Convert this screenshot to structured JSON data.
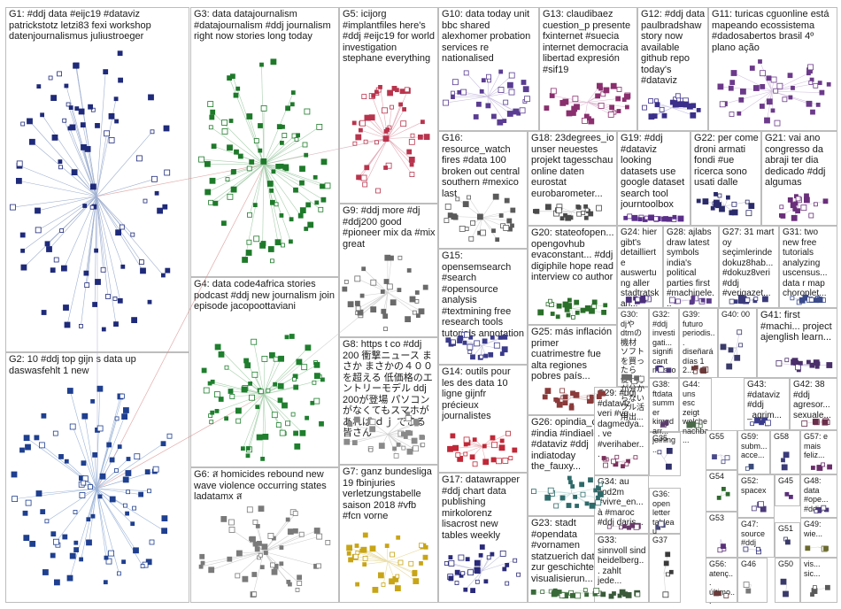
{
  "groups": [
    {
      "id": "G1",
      "label": "G1: #ddj data #eijc19 #dataviz patrickstotz letzi83 fexi workshop datenjournalismus juliustroeger",
      "color": "#1f2a7a",
      "edge": "#9fb0d0"
    },
    {
      "id": "G2",
      "label": "G2: 10 #ddj top gijn s data up daswasfehlt 1 new",
      "color": "#1f3f8f",
      "edge": "#9db5d8"
    },
    {
      "id": "G3",
      "label": "G3: data datajournalism #datajournalism #ddj journalism right now stories long today",
      "color": "#1e7a2a",
      "edge": "#a8ceae"
    },
    {
      "id": "G4",
      "label": "G4: data code4africa stories podcast #ddj new journalism join episode jacopoottaviani",
      "color": "#1f7f2e",
      "edge": "#a8d1ae"
    },
    {
      "id": "G5",
      "label": "G5: icijorg #implantfiles here's #ddj #eijc19 for world investigation stephane everything",
      "color": "#b8344d",
      "edge": "#e3a9b6"
    },
    {
      "id": "G6",
      "label": "G6: ส homicides rebound new wave violence occurring states ladatamx ส",
      "color": "#7a7a7a",
      "edge": "#cfcfcf"
    },
    {
      "id": "G7",
      "label": "G7: ganz bundesliga 19 fbinjuries verletzungstabelle saison 2018 #vfb #fcn vorne",
      "color": "#c8a516",
      "edge": "#e8dba0"
    },
    {
      "id": "G8",
      "label": "G8: https t co #ddj 200 衝撃ニュース まさか まさかの４００を超える 低価格のエントリーモデル ddj 200が登場 パソコンがなくてもスマホがあれば ｄｊ できる 皆さん",
      "color": "#8a8a8a",
      "edge": "#d0d0d0"
    },
    {
      "id": "G9",
      "label": "G9: #ddj more #dj #ddj200 good #pioneer mix da #mix great",
      "color": "#6a6a6a",
      "edge": "#d3d3d3"
    },
    {
      "id": "G10",
      "label": "G10: data today unit bbc shared alexhomer probation services re nationalised",
      "color": "#5a3d92",
      "edge": "#cbbfe0"
    },
    {
      "id": "G11",
      "label": "G11: turicas cguonline está mapeando ecossistema #dadosabertos brasil 4º plano ação",
      "color": "#6c3a8a",
      "edge": "#d4c2e0"
    },
    {
      "id": "G12",
      "label": "G12: #ddj data paulbradshaw story now available github repo today's #dataviz",
      "color": "#3a2f8a",
      "edge": "#c7c2e6"
    },
    {
      "id": "G13",
      "label": "G13: claudibaez cuestion_p presente fxinternet #suecia internet democracia libertad expresión #sif19",
      "color": "#8a2f6e",
      "edge": "#e0bfd6"
    },
    {
      "id": "G14",
      "label": "G14: outils pour les des data 10 ligne gijnfr précieux journalistes",
      "color": "#c02838",
      "edge": "#eab0b6"
    },
    {
      "id": "G15",
      "label": "G15: opensemsearch #search #opensource analysis #textmining free research tools tutorials annotation",
      "color": "#3a3a8a",
      "edge": "#c6c6e0"
    },
    {
      "id": "G16",
      "label": "G16: resource_watch fires #data 100 broken out central southern #mexico last",
      "color": "#5a5a5a",
      "edge": "#d6d6d6"
    },
    {
      "id": "G17",
      "label": "G17: datawrapper #ddj chart data publishing mirkolorenz lisacrost new tables weekly",
      "color": "#2a2a7a",
      "edge": "#c4c4e0"
    },
    {
      "id": "G18",
      "label": "G18: 23degrees_io unser neuestes projekt tagesschau online daten eurostat eurobarometer...",
      "color": "#4a4a4a",
      "edge": "#d8d8d8"
    },
    {
      "id": "G19",
      "label": "G19: #ddj #dataviz looking datasets use google dataset search tool journtoolbox",
      "color": "#5a2f8a",
      "edge": "#d2c4e2"
    },
    {
      "id": "G20",
      "label": "G20: stateofopen... opengovhub evaconstant... #ddj digiphile hope read interview co author",
      "color": "#2a6f2a",
      "edge": "#c2dcc2"
    },
    {
      "id": "G21",
      "label": "G21: vai ano congresso da abraji ter dia dedicado #ddj algumas",
      "color": "#6a2f7a",
      "edge": "#d8c6e0"
    },
    {
      "id": "G22",
      "label": "G22: per come droni armati fondi #ue ricerca sono usati dalle",
      "color": "#2a2a6a",
      "edge": "#c6c6dc"
    },
    {
      "id": "G23",
      "label": "G23: stadt #opendata #vornamen statzuerich daten zur geschichte visualisierun...",
      "color": "#3a6a3a",
      "edge": "#c8dcc8"
    },
    {
      "id": "G24",
      "label": "G24: hier gibt's detaillierte auswertung aller stadtratskan...",
      "color": "#4a2f7a",
      "edge": "#cfc6e0"
    },
    {
      "id": "G25",
      "label": "G25: más inflación primer cuatrimestre fue alta regiones pobres país...",
      "color": "#8a3a3a",
      "edge": "#e0c6c6"
    },
    {
      "id": "G26",
      "label": "G26: opindia_com #india #indiaelects #dataviz #ddj indiatoday the_fauxy...",
      "color": "#2f6a6a",
      "edge": "#c4dcdc"
    },
    {
      "id": "G27",
      "label": "G27: 31 mart oy seçimlerinde dokuz8hab... #dokuz8veri #ddj #verigazet...",
      "color": "#3a3a7a",
      "edge": "#c8c8e0"
    },
    {
      "id": "G28",
      "label": "G28: ajlabs draw latest symbols india's political parties first #machinele...",
      "color": "#5a3a8a",
      "edge": "#d0c6e0"
    },
    {
      "id": "G29",
      "label": "G29: #ddj #dataviz veri #vg dagmedya... ve #verihaber...",
      "color": "#7a2f5a",
      "edge": "#dcc4d4"
    },
    {
      "id": "G30",
      "label": "G30: djや dtmの機材 ソフトを買ったら 使い方が分からない フル活用出...",
      "color": "#6a6a6a",
      "edge": "#d6d6d6"
    },
    {
      "id": "G31",
      "label": "G31: two new free tutorials analyzing uscensus... data r map choroplet...",
      "color": "#3a4a8a",
      "edge": "#c6cce0"
    },
    {
      "id": "G32",
      "label": "G32: #ddj investigati... significant moscow...",
      "color": "#4a3a7a",
      "edge": "#ccc6e0"
    },
    {
      "id": "G33",
      "label": "G33: sinnvoll sind heidelberg... zahlt jede...",
      "color": "#3a5a3a",
      "edge": "#c8d8c8"
    },
    {
      "id": "G34",
      "label": "G34: au cpd2m #vivre_en... à #maroc #ddj daris...",
      "color": "#6a3a6a",
      "edge": "#d8c6d8"
    },
    {
      "id": "G35",
      "label": "G35",
      "color": "#2f2f6a",
      "edge": "#c8c8dc"
    },
    {
      "id": "G36",
      "label": "G36: open letter tableau software...",
      "color": "#4a4a7a",
      "edge": "#ccccdc"
    },
    {
      "id": "G37",
      "label": "G37",
      "color": "#3a3a3a",
      "edge": "#d4d4d4"
    },
    {
      "id": "G38",
      "label": "G38: ftdata summer kimgdarr... joining...",
      "color": "#5a3a6a",
      "edge": "#d4c8dc"
    },
    {
      "id": "G39",
      "label": "G39: futuro periodis... diseñará días 1 2...",
      "color": "#6a3a3a",
      "edge": "#dcc8c8"
    },
    {
      "id": "G40",
      "label": "G40: 00",
      "color": "#3a3a6a",
      "edge": "#c8c8dc"
    },
    {
      "id": "G41",
      "label": "G41: first #machi... project ajenglish learn...",
      "color": "#4a2f6a",
      "edge": "#d0c6dc"
    },
    {
      "id": "G42",
      "label": "G42: 38 #ddj agresor... sexuale...",
      "color": "#6a2f4a",
      "edge": "#dcc4d0"
    },
    {
      "id": "G43",
      "label": "G43: #dataviz #ddj _agrim...",
      "color": "#3a3a8a",
      "edge": "#c8c8e0"
    },
    {
      "id": "G44",
      "label": "G44: uns esc zeigt welche nachba...",
      "color": "#4a6a4a",
      "edge": "#ccdccc"
    },
    {
      "id": "G45",
      "label": "G45",
      "color": "#5a2f7a",
      "edge": "#d2c6e0"
    },
    {
      "id": "G46",
      "label": "G46",
      "color": "#7a7a7a",
      "edge": "#d8d8d8"
    },
    {
      "id": "G47",
      "label": "G47: source #ddj",
      "color": "#2f2f7a",
      "edge": "#c6c6e0"
    },
    {
      "id": "G48",
      "label": "G48: data #ope... #ddj...",
      "color": "#4a3a7a",
      "edge": "#ccc6e0"
    },
    {
      "id": "G49",
      "label": "G49: wie...",
      "color": "#6a6a2f",
      "edge": "#dcdcc4"
    },
    {
      "id": "G50",
      "label": "G50",
      "color": "#3a3a6a",
      "edge": "#c8c8dc"
    },
    {
      "id": "G51",
      "label": "G51",
      "color": "#3a3a6a",
      "edge": "#c8c8dc"
    },
    {
      "id": "G52",
      "label": "G52: spacex",
      "color": "#4a3a7a",
      "edge": "#ccc6e0"
    },
    {
      "id": "G53",
      "label": "G53",
      "color": "#5a2f7a",
      "edge": "#d2c6e0"
    },
    {
      "id": "G54",
      "label": "G54",
      "color": "#2f6a2f",
      "edge": "#c4dcc4"
    },
    {
      "id": "G55",
      "label": "G55",
      "color": "#4a4a8a",
      "edge": "#ccccdc"
    },
    {
      "id": "G56",
      "label": "G56: atenç... último...",
      "color": "#6a3a3a",
      "edge": "#dcc8c8"
    },
    {
      "id": "G57",
      "label": "G57: e mais feliz...",
      "color": "#6a2f6a",
      "edge": "#dcc4dc"
    },
    {
      "id": "G58",
      "label": "G58",
      "color": "#3a3a7a",
      "edge": "#c8c8e0"
    },
    {
      "id": "G59",
      "label": "G59: subm... acce...",
      "color": "#3a4a7a",
      "edge": "#c8cce0"
    },
    {
      "id": "G60",
      "label": "vis... sic...",
      "color": "#5a5a5a",
      "edge": "#d6d6d6"
    }
  ]
}
